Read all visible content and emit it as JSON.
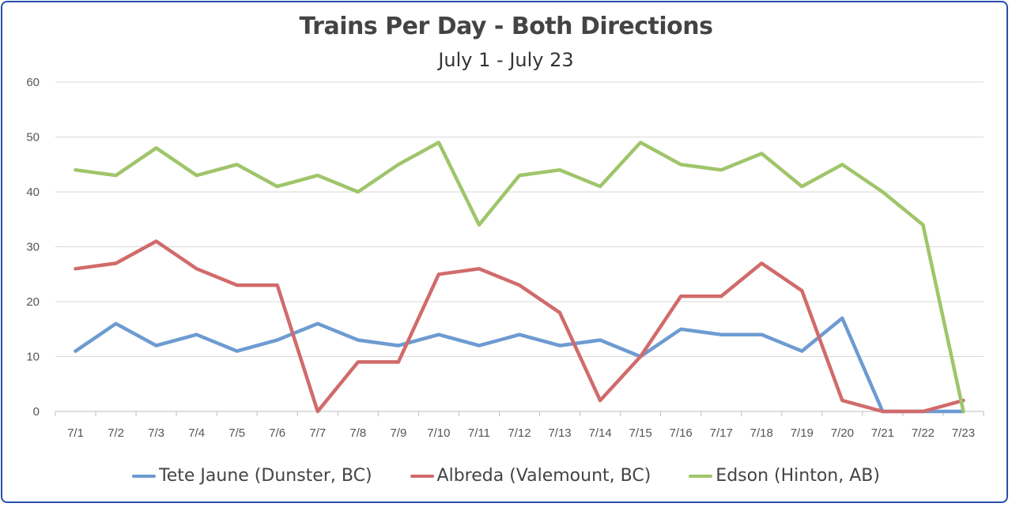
{
  "chart_data": {
    "type": "line",
    "title": "Trains Per Day - Both Directions",
    "subtitle": "July 1 - July 23",
    "categories": [
      "7/1",
      "7/2",
      "7/3",
      "7/4",
      "7/5",
      "7/6",
      "7/7",
      "7/8",
      "7/9",
      "7/10",
      "7/11",
      "7/12",
      "7/13",
      "7/14",
      "7/15",
      "7/16",
      "7/17",
      "7/18",
      "7/19",
      "7/20",
      "7/21",
      "7/22",
      "7/23"
    ],
    "ylim": [
      0,
      60
    ],
    "yticks": [
      0,
      10,
      20,
      30,
      40,
      50,
      60
    ],
    "grid": true,
    "legend_position": "bottom",
    "series": [
      {
        "name": "Tete Jaune (Dunster, BC)",
        "color": "#6d9bd1",
        "values": [
          11,
          16,
          12,
          14,
          11,
          13,
          16,
          13,
          12,
          14,
          12,
          14,
          12,
          13,
          10,
          15,
          14,
          14,
          11,
          17,
          0,
          0,
          0
        ]
      },
      {
        "name": "Albreda (Valemount, BC)",
        "color": "#d16b6b",
        "values": [
          26,
          27,
          31,
          26,
          23,
          23,
          0,
          9,
          9,
          25,
          26,
          23,
          18,
          2,
          10,
          21,
          21,
          27,
          22,
          2,
          0,
          0,
          2
        ]
      },
      {
        "name": "Edson (Hinton, AB)",
        "color": "#9fc56a",
        "values": [
          44,
          43,
          48,
          43,
          45,
          41,
          43,
          40,
          45,
          49,
          34,
          43,
          44,
          41,
          49,
          45,
          44,
          47,
          41,
          45,
          40,
          34,
          0
        ]
      }
    ]
  }
}
